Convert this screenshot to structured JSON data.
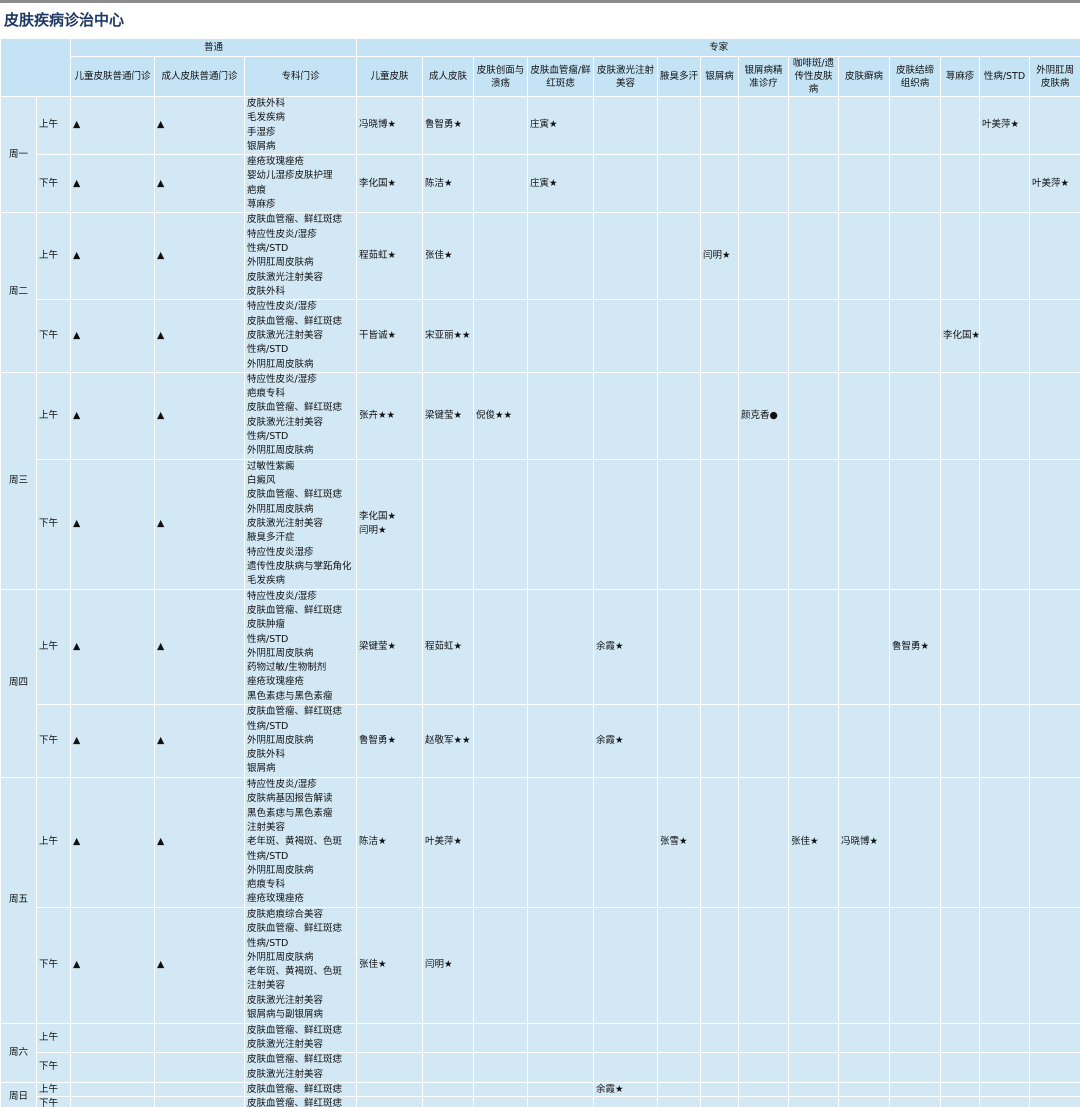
{
  "header": {
    "title": "皮肤疾病诊治中心"
  },
  "table": {
    "groups": [
      "普通",
      "专家"
    ],
    "columns": [
      "儿童皮肤普通门诊",
      "成人皮肤普通门诊",
      "专科门诊",
      "儿童皮肤",
      "成人皮肤",
      "皮肤创面与溃疡",
      "皮肤血管瘤/鲜红斑痣",
      "皮肤激光注射美容",
      "腋臭多汗",
      "银屑病",
      "银屑病精准诊疗",
      "咖啡斑/遗传性皮肤病",
      "皮肤癣病",
      "皮肤结缔组织病",
      "荨麻疹",
      "性病/STD",
      "外阴肛周皮肤病"
    ],
    "days": [
      {
        "day": "周一",
        "sessions": [
          {
            "half": "上午",
            "cells": [
              "▲",
              "▲",
              [
                "皮肤外科",
                "毛发疾病",
                "手湿疹",
                "银屑病"
              ],
              "冯晓博★",
              "鲁智勇★",
              null,
              "庄寅★",
              null,
              null,
              null,
              null,
              null,
              null,
              null,
              null,
              "叶美萍★",
              null
            ]
          },
          {
            "half": "下午",
            "cells": [
              "▲",
              "▲",
              [
                "痤疮玫瑰痤疮",
                "婴幼儿湿疹皮肤护理",
                "疤痕",
                "荨麻疹"
              ],
              "李化国★",
              "陈洁★",
              null,
              "庄寅★",
              null,
              null,
              null,
              null,
              null,
              null,
              null,
              null,
              null,
              "叶美萍★"
            ]
          }
        ]
      },
      {
        "day": "周二",
        "sessions": [
          {
            "half": "上午",
            "cells": [
              "▲",
              "▲",
              [
                "皮肤血管瘤、鲜红斑痣",
                "特应性皮炎/湿疹",
                "性病/STD",
                "外阴肛周皮肤病",
                "皮肤激光注射美容",
                "皮肤外科"
              ],
              "程茹虹★",
              "张佳★",
              null,
              null,
              null,
              null,
              "闫明★",
              null,
              null,
              null,
              null,
              null,
              null,
              null
            ]
          },
          {
            "half": "下午",
            "cells": [
              "▲",
              "▲",
              [
                "特应性皮炎/湿疹",
                "皮肤血管瘤、鲜红斑痣",
                "皮肤激光注射美容",
                "性病/STD",
                "外阴肛周皮肤病"
              ],
              "干皆诚★",
              "宋亚丽★★",
              null,
              null,
              null,
              null,
              null,
              null,
              null,
              null,
              null,
              "李化国★",
              null,
              null
            ]
          }
        ]
      },
      {
        "day": "周三",
        "sessions": [
          {
            "half": "上午",
            "cells": [
              "▲",
              "▲",
              [
                "特应性皮炎/湿疹",
                "疤痕专科",
                "皮肤血管瘤、鲜红斑痣",
                "皮肤激光注射美容",
                "性病/STD",
                "外阴肛周皮肤病"
              ],
              "张卉★★",
              "梁键莹★",
              "倪俊★★",
              null,
              null,
              null,
              null,
              "颜克香●",
              null,
              null,
              null,
              null,
              null,
              null
            ]
          },
          {
            "half": "下午",
            "cells": [
              "▲",
              "▲",
              [
                "过敏性紫癜",
                "白癜风",
                "皮肤血管瘤、鲜红斑痣",
                "外阴肛周皮肤病",
                "皮肤激光注射美容",
                "腋臭多汗症",
                "特应性皮炎湿疹",
                "遗传性皮肤病与掌跖角化",
                "毛发疾病"
              ],
              [
                "李化国★",
                "闫明★"
              ],
              null,
              null,
              null,
              null,
              null,
              null,
              null,
              null,
              null,
              null,
              null,
              null,
              null
            ]
          }
        ]
      },
      {
        "day": "周四",
        "sessions": [
          {
            "half": "上午",
            "cells": [
              "▲",
              "▲",
              [
                "特应性皮炎/湿疹",
                "皮肤血管瘤、鲜红斑痣",
                "皮肤肿瘤",
                "性病/STD",
                "外阴肛周皮肤病",
                "药物过敏/生物制剂",
                "痤疮玫瑰痤疮",
                "黑色素痣与黑色素瘤"
              ],
              "梁键莹★",
              "程茹虹★",
              null,
              null,
              "余霞★",
              null,
              null,
              null,
              null,
              null,
              "鲁智勇★",
              null,
              null,
              null
            ]
          },
          {
            "half": "下午",
            "cells": [
              "▲",
              "▲",
              [
                "皮肤血管瘤、鲜红斑痣",
                "性病/STD",
                "外阴肛周皮肤病",
                "皮肤外科",
                "银屑病"
              ],
              "鲁智勇★",
              "赵敬军★★",
              null,
              null,
              "余霞★",
              null,
              null,
              null,
              null,
              null,
              null,
              null,
              null,
              null
            ]
          }
        ]
      },
      {
        "day": "周五",
        "sessions": [
          {
            "half": "上午",
            "cells": [
              "▲",
              "▲",
              [
                "特应性皮炎/湿疹",
                "皮肤病基因报告解读",
                "黑色素痣与黑色素瘤",
                "注射美容",
                "老年斑、黄褐斑、色斑",
                "性病/STD",
                "外阴肛周皮肤病",
                "疤痕专科",
                "痤疮玫瑰痤疮"
              ],
              "陈洁★",
              "叶美萍★",
              null,
              null,
              null,
              "张雪★",
              null,
              null,
              "张佳★",
              "冯晓博★",
              null,
              null,
              null,
              null
            ]
          },
          {
            "half": "下午",
            "cells": [
              "▲",
              "▲",
              [
                "皮肤疤痕综合美容",
                "皮肤血管瘤、鲜红斑痣",
                "性病/STD",
                "外阴肛周皮肤病",
                "老年斑、黄褐斑、色斑",
                "注射美容",
                "皮肤激光注射美容",
                "银屑病与副银屑病"
              ],
              "张佳★",
              "闫明★",
              null,
              null,
              null,
              null,
              null,
              null,
              null,
              null,
              null,
              null,
              null,
              null
            ]
          }
        ]
      },
      {
        "day": "周六",
        "sessions": [
          {
            "half": "上午",
            "cells": [
              null,
              null,
              [
                "皮肤血管瘤、鲜红斑痣",
                "皮肤激光注射美容"
              ],
              null,
              null,
              null,
              null,
              null,
              null,
              null,
              null,
              null,
              null,
              null,
              null,
              null,
              null
            ]
          },
          {
            "half": "下午",
            "cells": [
              null,
              null,
              [
                "皮肤血管瘤、鲜红斑痣",
                "皮肤激光注射美容"
              ],
              null,
              null,
              null,
              null,
              null,
              null,
              null,
              null,
              null,
              null,
              null,
              null,
              null,
              null
            ]
          }
        ]
      },
      {
        "day": "周日",
        "sessions": [
          {
            "half": "上午",
            "cells": [
              null,
              null,
              [
                "皮肤血管瘤、鲜红斑痣"
              ],
              null,
              null,
              null,
              null,
              "余霞★",
              null,
              null,
              null,
              null,
              null,
              null,
              null,
              null,
              null
            ]
          },
          {
            "half": "下午",
            "cells": [
              null,
              null,
              [
                "皮肤血管瘤、鲜红斑痣"
              ],
              null,
              null,
              null,
              null,
              null,
              null,
              null,
              null,
              null,
              null,
              null,
              null,
              null,
              null
            ]
          }
        ]
      }
    ]
  }
}
